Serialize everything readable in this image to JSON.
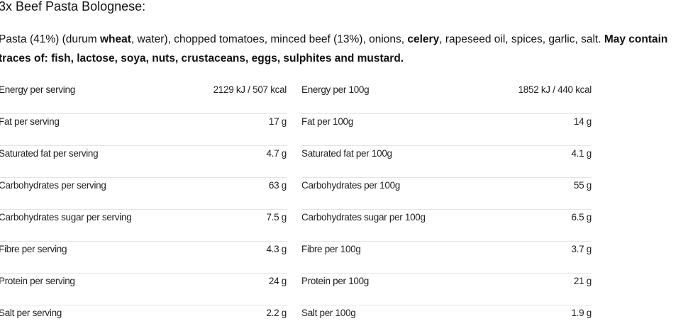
{
  "title": "3x Beef Pasta Bolognese:",
  "ingredients": [
    {
      "text": "Pasta (41%) (durum ",
      "bold": false
    },
    {
      "text": "wheat",
      "bold": true
    },
    {
      "text": ", water), chopped tomatoes, minced beef (13%), onions, ",
      "bold": false
    },
    {
      "text": "celery",
      "bold": true
    },
    {
      "text": ", rapeseed oil, spices, garlic, salt. ",
      "bold": false
    },
    {
      "text": "May contain traces of: fish, lactose, soya, nuts, crustaceans, eggs, sulphites and mustard.",
      "bold": true
    }
  ],
  "table": {
    "rows": [
      [
        [
          "Energy per serving",
          "2129 kJ / 507 kcal"
        ],
        [
          "Energy per 100g",
          "1852 kJ / 440 kcal"
        ]
      ],
      [
        [
          "Fat per serving",
          "17 g"
        ],
        [
          "Fat per 100g",
          "14 g"
        ]
      ],
      [
        [
          "Saturated fat per serving",
          "4.7 g"
        ],
        [
          "Saturated fat per 100g",
          "4.1 g"
        ]
      ],
      [
        [
          "Carbohydrates per serving",
          "63 g"
        ],
        [
          "Carbohydrates per 100g",
          "55 g"
        ]
      ],
      [
        [
          "Carbohydrates sugar per serving",
          "7.5 g"
        ],
        [
          "Carbohydrates sugar per 100g",
          "6.5 g"
        ]
      ],
      [
        [
          "Fibre per serving",
          "4.3 g"
        ],
        [
          "Fibre per 100g",
          "3.7 g"
        ]
      ],
      [
        [
          "Protein per serving",
          "24 g"
        ],
        [
          "Protein per 100g",
          "21 g"
        ]
      ],
      [
        [
          "Salt per serving",
          "2.2 g"
        ],
        [
          "Salt per 100g",
          "1.9 g"
        ]
      ]
    ]
  }
}
